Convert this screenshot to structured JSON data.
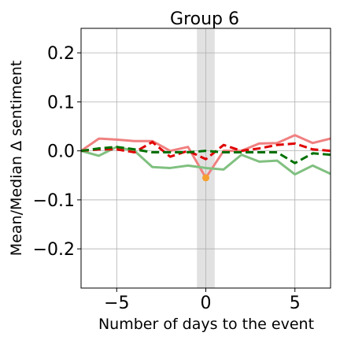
{
  "chart_data": {
    "type": "line",
    "title": "Group 6",
    "xlabel": "Number of days to the event",
    "ylabel": "Mean/Median Δ sentiment",
    "xlim": [
      -7,
      7
    ],
    "ylim": [
      -0.28,
      0.25
    ],
    "xticks": [
      -5,
      0,
      5
    ],
    "xtick_labels": [
      "−5",
      "0",
      "5"
    ],
    "yticks": [
      -0.2,
      -0.1,
      0.0,
      0.1,
      0.2
    ],
    "ytick_labels": [
      "−0.2",
      "−0.1",
      "0.0",
      "0.1",
      "0.2"
    ],
    "grid": true,
    "event_band": [
      -0.5,
      0.5
    ],
    "x": [
      -7,
      -6,
      -5,
      -4,
      -3,
      -2,
      -1,
      0,
      1,
      2,
      3,
      4,
      5,
      6,
      7
    ],
    "series": [
      {
        "color": "#f08080",
        "style": "solid",
        "values": [
          0.0,
          0.025,
          0.023,
          0.02,
          0.02,
          0.0,
          0.008,
          -0.055,
          0.0,
          0.0,
          0.015,
          0.016,
          0.032,
          0.016,
          0.025
        ]
      },
      {
        "color": "#80c080",
        "style": "solid",
        "values": [
          0.0,
          -0.01,
          0.008,
          0.0,
          -0.033,
          -0.035,
          -0.03,
          -0.035,
          -0.038,
          -0.008,
          -0.022,
          -0.02,
          -0.048,
          -0.03,
          -0.047
        ]
      },
      {
        "color": "#e00000",
        "style": "dashed",
        "values": [
          0.0,
          0.003,
          0.003,
          -0.003,
          0.018,
          -0.012,
          0.0,
          -0.017,
          0.012,
          0.0,
          0.005,
          0.012,
          0.015,
          0.003,
          0.0
        ]
      },
      {
        "color": "#007000",
        "style": "dashed",
        "values": [
          0.0,
          0.005,
          0.008,
          0.003,
          -0.003,
          -0.003,
          -0.003,
          0.0,
          -0.003,
          -0.003,
          -0.003,
          -0.003,
          -0.025,
          -0.005,
          -0.008
        ]
      }
    ],
    "event_point": {
      "x": 0,
      "y": -0.055,
      "color": "#f5a030"
    }
  }
}
